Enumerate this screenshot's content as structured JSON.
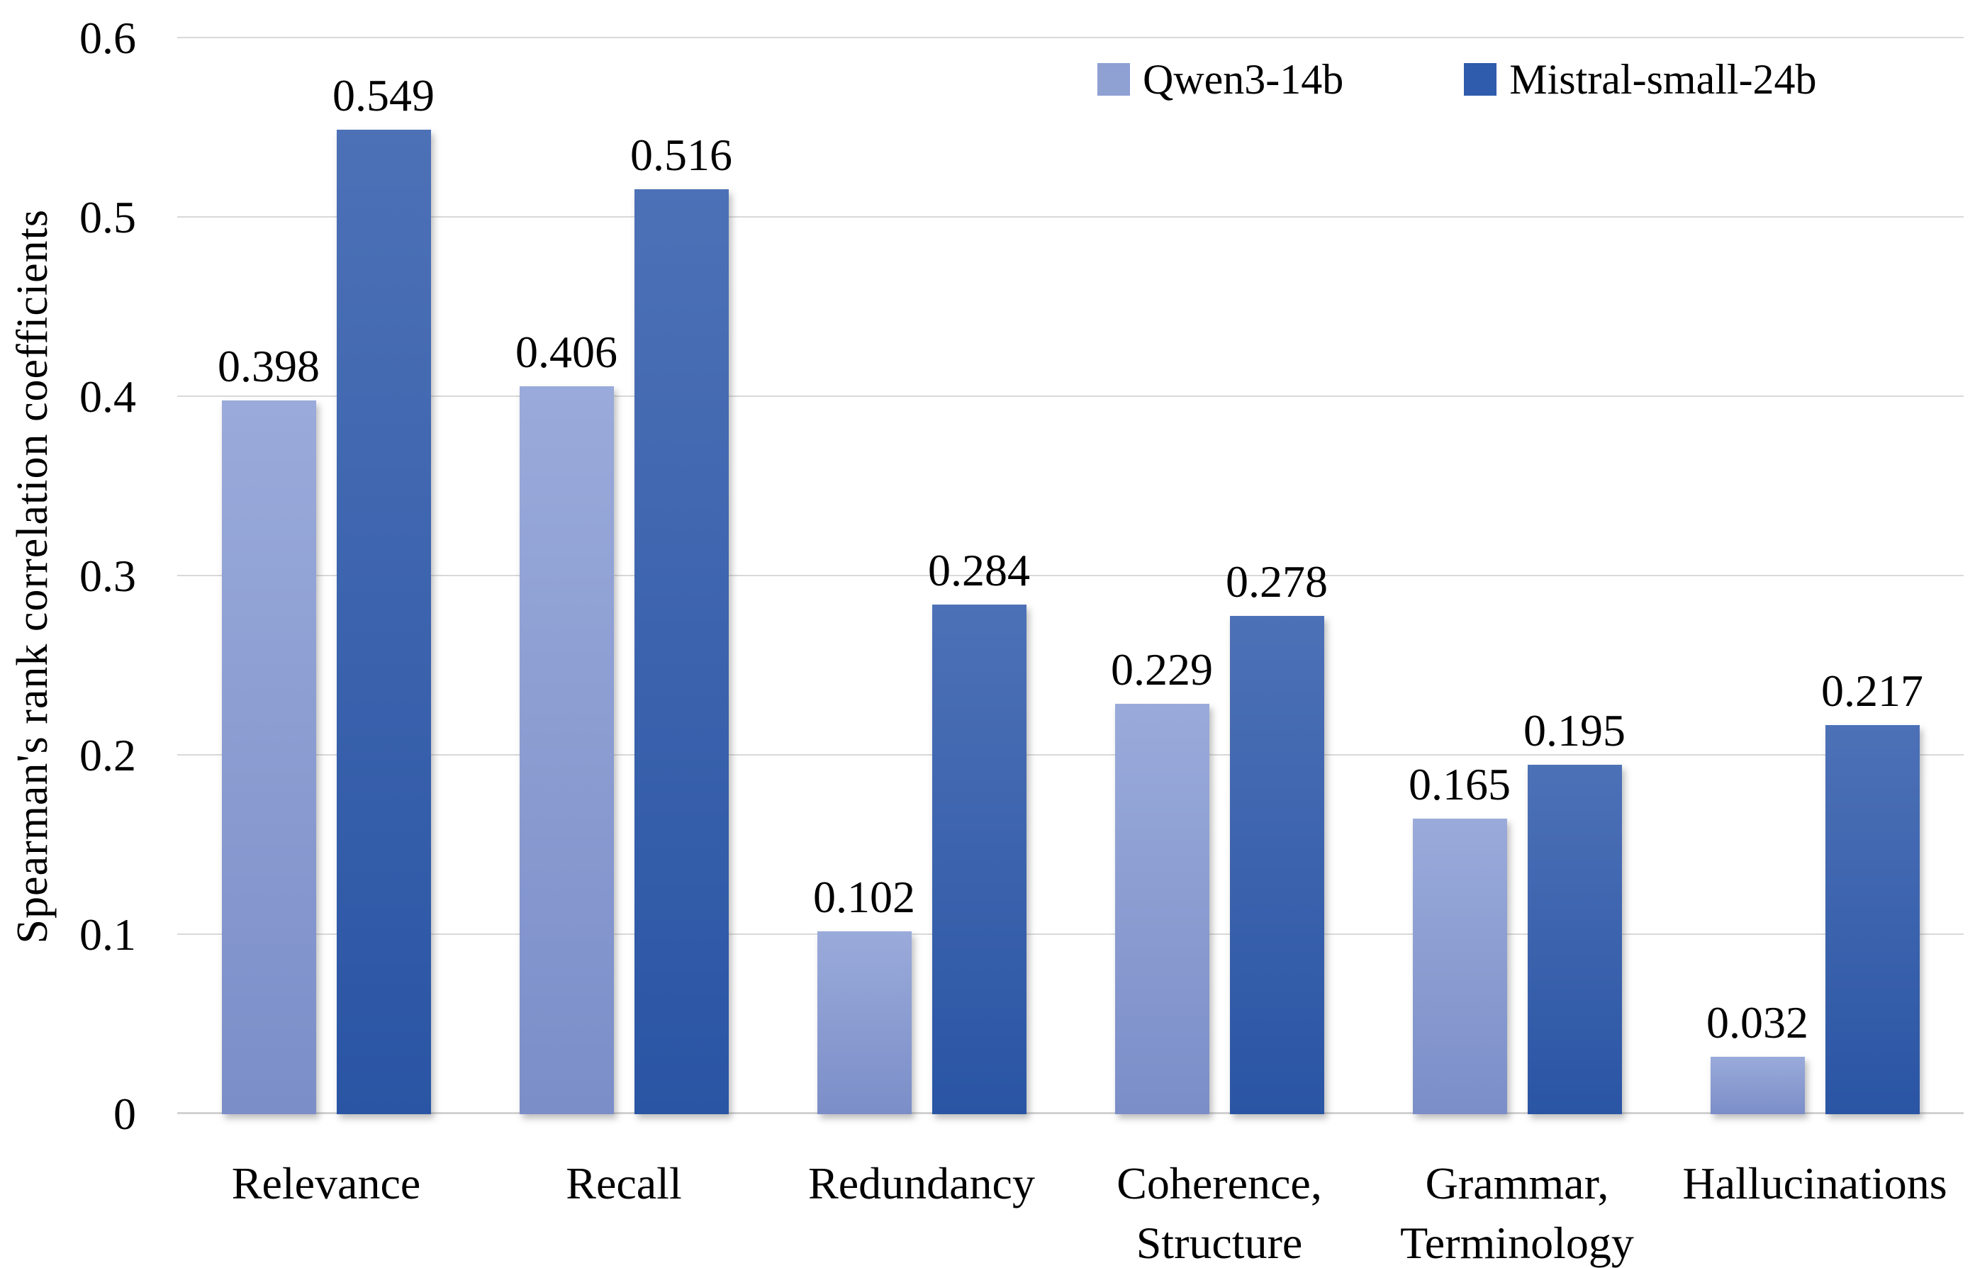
{
  "colors": {
    "background": "#ffffff",
    "gridline": "#d9d9d9",
    "text": "#000000",
    "series1_top": "#9aaada",
    "series1_bottom": "#7b8ec8",
    "series1_legend": "#8fa0d3",
    "series2_top": "#4d71b7",
    "series2_bottom": "#2a55a4",
    "series2_legend": "#2f5cac"
  },
  "chart_data": {
    "type": "bar",
    "title": "",
    "xlabel": "",
    "ylabel": "Spearman's rank correlation coefficients",
    "ylim": [
      0,
      0.6
    ],
    "yticks": [
      0,
      0.1,
      0.2,
      0.3,
      0.4,
      0.5,
      0.6
    ],
    "ytick_labels": [
      "0",
      "0.1",
      "0.2",
      "0.3",
      "0.4",
      "0.5",
      "0.6"
    ],
    "grid": true,
    "legend_position": "top-right",
    "categories": [
      "Relevance",
      "Recall",
      "Redundancy",
      "Coherence,\nStructure",
      "Grammar,\nTerminology",
      "Hallucinations"
    ],
    "series": [
      {
        "name": "Qwen3-14b",
        "values": [
          0.398,
          0.406,
          0.102,
          0.229,
          0.165,
          0.032
        ],
        "value_labels": [
          "0.398",
          "0.406",
          "0.102",
          "0.229",
          "0.165",
          "0.032"
        ],
        "color_top": "#9aaada",
        "color_bottom": "#7b8ec8",
        "legend_color": "#8fa0d3"
      },
      {
        "name": "Mistral-small-24b",
        "values": [
          0.549,
          0.516,
          0.284,
          0.278,
          0.195,
          0.217
        ],
        "value_labels": [
          "0.549",
          "0.516",
          "0.284",
          "0.278",
          "0.195",
          "0.217"
        ],
        "color_top": "#4d71b7",
        "color_bottom": "#2a55a4",
        "legend_color": "#2f5cac"
      }
    ]
  }
}
